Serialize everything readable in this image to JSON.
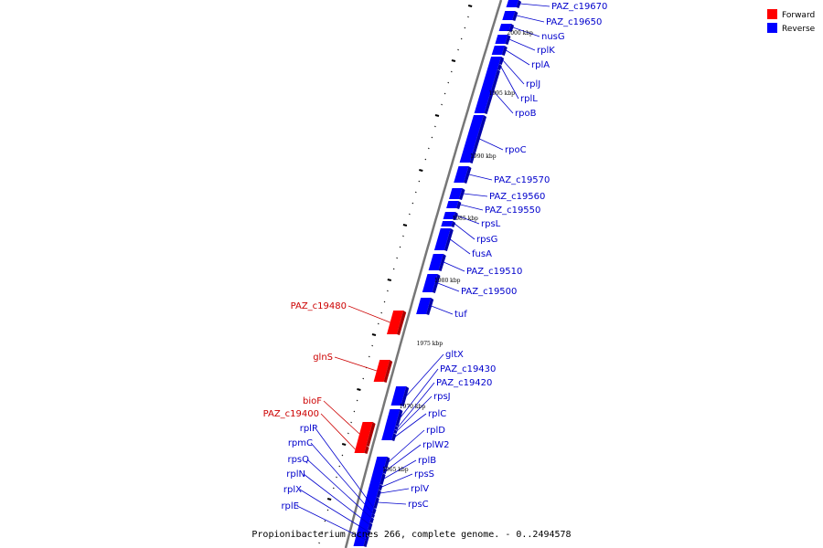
{
  "caption": "Propionibacterium acnes 266, complete genome. - 0..2494578",
  "legend": [
    {
      "label": "Forward",
      "color": "#ff0000"
    },
    {
      "label": "Reverse",
      "color": "#0000ff"
    }
  ],
  "colors": {
    "forward": "#ff0000",
    "forward_dark": "#aa0000",
    "reverse": "#0000ff",
    "reverse_dark": "#0000aa",
    "forward_label": "#cc0000",
    "reverse_label": "#0000cc",
    "backbone": "#777777"
  },
  "kbp_markers": [
    "2000 kbp",
    "1995 kbp",
    "1990 kbp",
    "1985 kbp",
    "1980 kbp",
    "1975 kbp",
    "1970 kbp",
    "1965 kbp"
  ],
  "genes": [
    {
      "name": "PAZ_c19670",
      "strand": "reverse"
    },
    {
      "name": "PAZ_c19650",
      "strand": "reverse"
    },
    {
      "name": "nusG",
      "strand": "reverse"
    },
    {
      "name": "rplK",
      "strand": "reverse"
    },
    {
      "name": "rplA",
      "strand": "reverse"
    },
    {
      "name": "rplJ",
      "strand": "reverse"
    },
    {
      "name": "rplL",
      "strand": "reverse"
    },
    {
      "name": "rpoB",
      "strand": "reverse"
    },
    {
      "name": "rpoC",
      "strand": "reverse"
    },
    {
      "name": "PAZ_c19570",
      "strand": "reverse"
    },
    {
      "name": "PAZ_c19560",
      "strand": "reverse"
    },
    {
      "name": "PAZ_c19550",
      "strand": "reverse"
    },
    {
      "name": "rpsL",
      "strand": "reverse"
    },
    {
      "name": "rpsG",
      "strand": "reverse"
    },
    {
      "name": "fusA",
      "strand": "reverse"
    },
    {
      "name": "PAZ_c19510",
      "strand": "reverse"
    },
    {
      "name": "PAZ_c19500",
      "strand": "reverse"
    },
    {
      "name": "tuf",
      "strand": "reverse"
    },
    {
      "name": "PAZ_c19480",
      "strand": "forward"
    },
    {
      "name": "glnS",
      "strand": "forward"
    },
    {
      "name": "gltX",
      "strand": "reverse"
    },
    {
      "name": "PAZ_c19430",
      "strand": "reverse"
    },
    {
      "name": "PAZ_c19420",
      "strand": "reverse"
    },
    {
      "name": "rpsJ",
      "strand": "reverse"
    },
    {
      "name": "rplC",
      "strand": "reverse"
    },
    {
      "name": "bioF",
      "strand": "forward"
    },
    {
      "name": "PAZ_c19400",
      "strand": "forward"
    },
    {
      "name": "rplD",
      "strand": "reverse"
    },
    {
      "name": "rplW2",
      "strand": "reverse"
    },
    {
      "name": "rplB",
      "strand": "reverse"
    },
    {
      "name": "rpsS",
      "strand": "reverse"
    },
    {
      "name": "rplV",
      "strand": "reverse"
    },
    {
      "name": "rpsC",
      "strand": "reverse"
    },
    {
      "name": "rplP",
      "strand": "reverse"
    },
    {
      "name": "rpmC",
      "strand": "reverse"
    },
    {
      "name": "rpsQ",
      "strand": "reverse"
    },
    {
      "name": "rplN",
      "strand": "reverse"
    },
    {
      "name": "rplX",
      "strand": "reverse"
    },
    {
      "name": "rplE",
      "strand": "reverse"
    }
  ]
}
